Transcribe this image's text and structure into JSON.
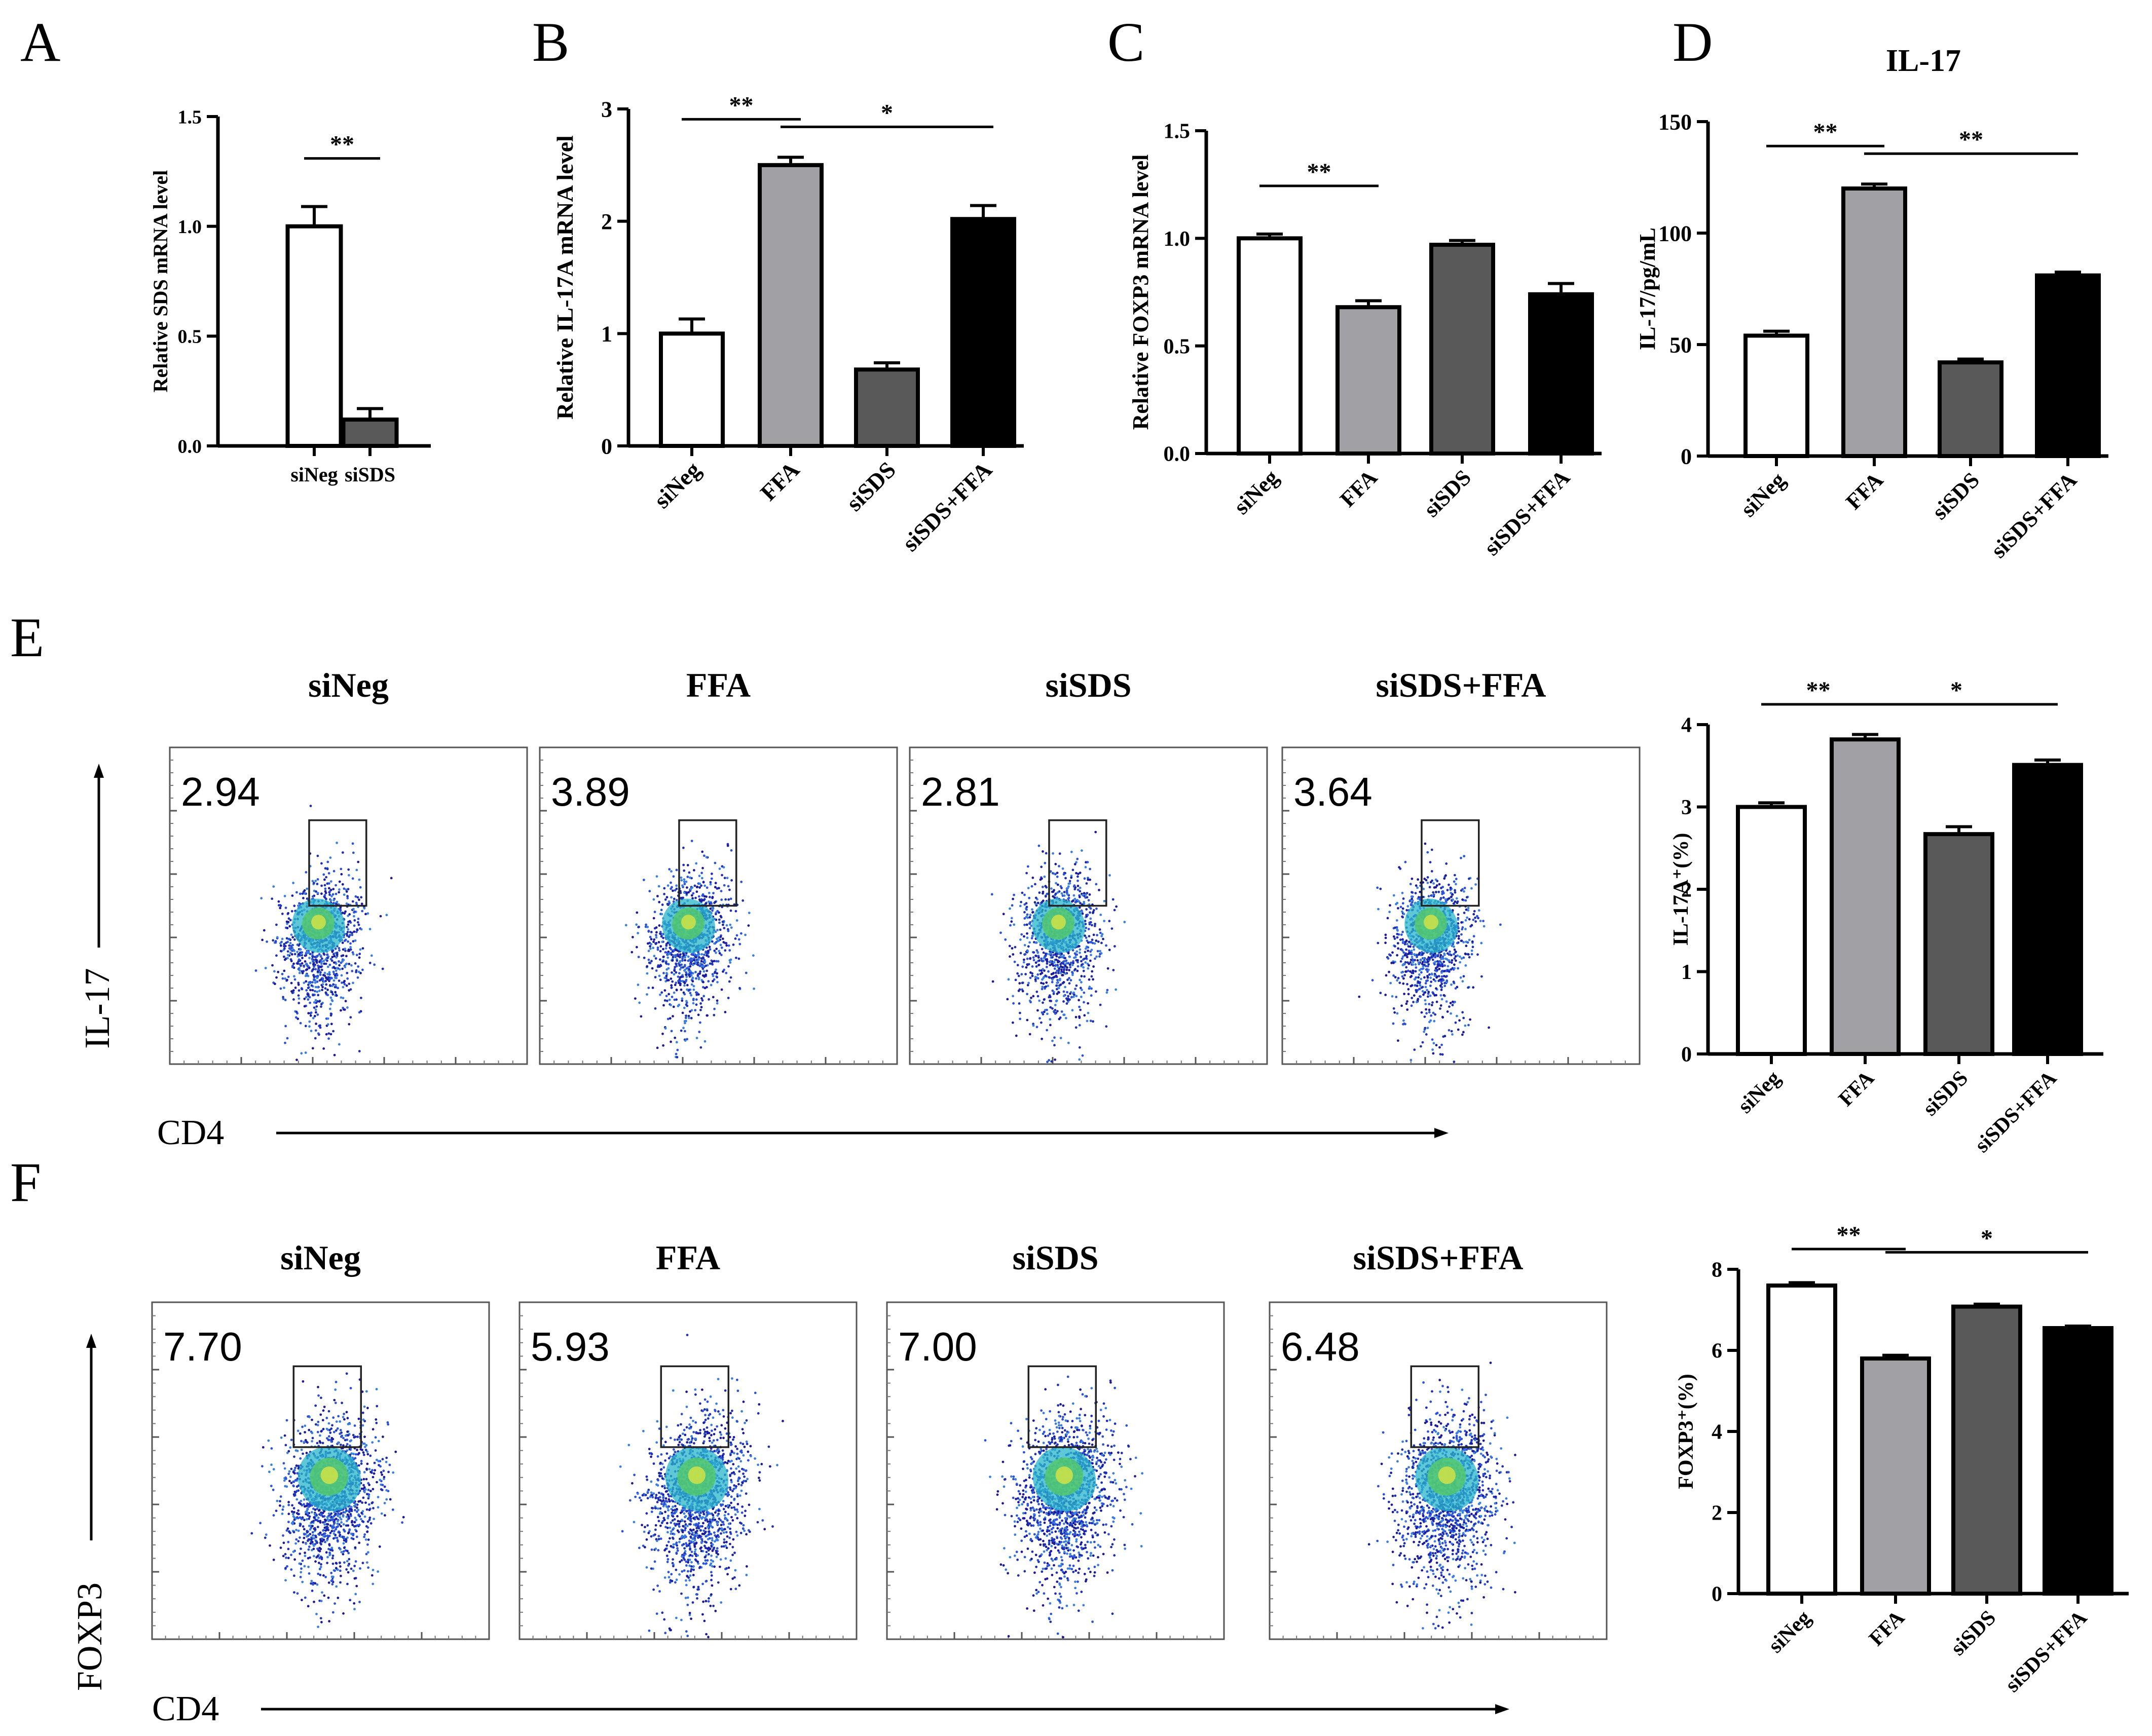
{
  "panels": [
    "A",
    "B",
    "C",
    "D",
    "E",
    "F"
  ],
  "colors": {
    "siNeg": "#ffffff",
    "FFA": "#a0a0a5",
    "siSDS": "#595959",
    "siSDS+FFA": "#000000",
    "axis": "#000000"
  },
  "chart_data": [
    {
      "id": "A",
      "type": "bar",
      "categories": [
        "siNeg",
        "siSDS"
      ],
      "values": [
        1.0,
        0.12
      ],
      "errors": [
        0.09,
        0.05
      ],
      "ylabel": "Relative SDS mRNA level",
      "ylim": [
        0,
        1.5
      ],
      "yticks": [
        "0.0",
        "0.5",
        "1.0",
        "1.5"
      ],
      "ytick_values": [
        0,
        0.5,
        1.0,
        1.5
      ],
      "title": "",
      "significance": [
        {
          "from": 0,
          "to": 1,
          "label": "**"
        }
      ]
    },
    {
      "id": "B",
      "type": "bar",
      "categories": [
        "siNeg",
        "FFA",
        "siSDS",
        "siSDS+FFA"
      ],
      "values": [
        1.0,
        2.5,
        0.68,
        2.02
      ],
      "errors": [
        0.13,
        0.07,
        0.06,
        0.12
      ],
      "ylabel": "Relative IL-17A mRNA level",
      "ylim": [
        0,
        3
      ],
      "yticks": [
        "0",
        "1",
        "2",
        "3"
      ],
      "ytick_values": [
        0,
        1,
        2,
        3
      ],
      "title": "",
      "significance": [
        {
          "from": 0,
          "to": 1,
          "label": "**"
        },
        {
          "from": 1,
          "to": 3,
          "label": "*"
        }
      ]
    },
    {
      "id": "C",
      "type": "bar",
      "categories": [
        "siNeg",
        "FFA",
        "siSDS",
        "siSDS+FFA"
      ],
      "values": [
        1.0,
        0.68,
        0.97,
        0.74
      ],
      "errors": [
        0.02,
        0.03,
        0.02,
        0.05
      ],
      "ylabel": "Relative FOXP3 mRNA level",
      "ylim": [
        0,
        1.5
      ],
      "yticks": [
        "0.0",
        "0.5",
        "1.0",
        "1.5"
      ],
      "ytick_values": [
        0,
        0.5,
        1.0,
        1.5
      ],
      "title": "",
      "significance": [
        {
          "from": 0,
          "to": 1,
          "label": "**"
        }
      ]
    },
    {
      "id": "D",
      "type": "bar",
      "categories": [
        "siNeg",
        "FFA",
        "siSDS",
        "siSDS+FFA"
      ],
      "values": [
        54,
        120,
        42,
        81
      ],
      "errors": [
        2,
        2,
        1.5,
        1.5
      ],
      "ylabel": "IL-17/pg/mL",
      "ylim": [
        0,
        150
      ],
      "yticks": [
        "0",
        "50",
        "100",
        "150"
      ],
      "ytick_values": [
        0,
        50,
        100,
        150
      ],
      "title": "IL-17",
      "significance": [
        {
          "from": 0,
          "to": 1,
          "label": "**"
        },
        {
          "from": 1,
          "to": 3,
          "label": "**"
        }
      ]
    },
    {
      "id": "E-bar",
      "type": "bar",
      "categories": [
        "siNeg",
        "FFA",
        "siSDS",
        "siSDS+FFA"
      ],
      "values": [
        3.0,
        3.82,
        2.67,
        3.51
      ],
      "errors": [
        0.05,
        0.06,
        0.09,
        0.06
      ],
      "ylabel": "IL-17A⁺(%)",
      "ylim": [
        0,
        4
      ],
      "yticks": [
        "0",
        "1",
        "2",
        "3",
        "4"
      ],
      "ytick_values": [
        0,
        1,
        2,
        3,
        4
      ],
      "title": "",
      "significance": [
        {
          "from": 0,
          "to": 1,
          "label": "**"
        },
        {
          "from": 1,
          "to": 3,
          "label": "*"
        }
      ]
    },
    {
      "id": "F-bar",
      "type": "bar",
      "categories": [
        "siNeg",
        "FFA",
        "siSDS",
        "siSDS+FFA"
      ],
      "values": [
        7.6,
        5.8,
        7.08,
        6.55
      ],
      "errors": [
        0.07,
        0.08,
        0.06,
        0.05
      ],
      "ylabel": "FOXP3⁺(%)",
      "ylim": [
        0,
        8
      ],
      "yticks": [
        "0",
        "2",
        "4",
        "6",
        "8"
      ],
      "ytick_values": [
        0,
        2,
        4,
        6,
        8
      ],
      "title": "",
      "significance": [
        {
          "from": 0,
          "to": 1,
          "label": "**"
        },
        {
          "from": 1,
          "to": 3,
          "label": "*"
        }
      ]
    }
  ],
  "flow_E": {
    "x_axis": "CD4",
    "y_axis": "IL-17",
    "titles": [
      "siNeg",
      "FFA",
      "siSDS",
      "siSDS+FFA"
    ],
    "percentages": [
      "2.94",
      "3.89",
      "2.81",
      "3.64"
    ]
  },
  "flow_F": {
    "x_axis": "CD4",
    "y_axis": "FOXP3",
    "titles": [
      "siNeg",
      "FFA",
      "siSDS",
      "siSDS+FFA"
    ],
    "percentages": [
      "7.70",
      "5.93",
      "7.00",
      "6.48"
    ]
  }
}
